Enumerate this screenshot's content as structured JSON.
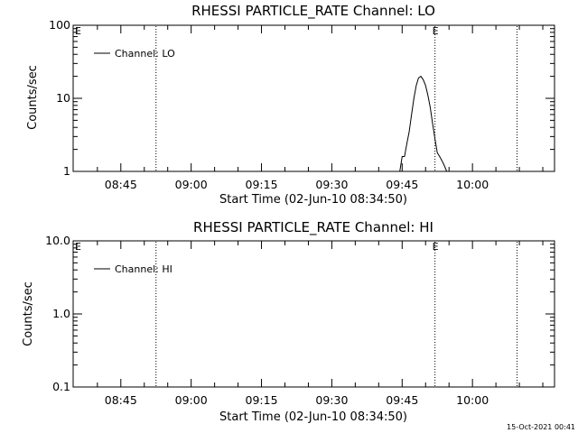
{
  "chart_data": [
    {
      "type": "line",
      "title": "RHESSI PARTICLE_RATE Channel: LO",
      "xlabel": "Start Time (02-Jun-10 08:34:50)",
      "ylabel": "Counts/sec",
      "yscale": "log",
      "ylim": [
        1,
        100
      ],
      "y_ticks": [
        1,
        10,
        100
      ],
      "y_tick_labels": [
        "1",
        "10",
        "100"
      ],
      "xlim_minutes_of_day": [
        514.83,
        617.5
      ],
      "x_tick_labels": [
        "08:45",
        "09:00",
        "09:15",
        "09:30",
        "09:45",
        "10:00"
      ],
      "x_tick_minutes_of_day": [
        525,
        540,
        555,
        570,
        585,
        600
      ],
      "vlines_dotted": [
        "08:52:30",
        "09:52:00",
        "10:09:30"
      ],
      "markers": [
        {
          "label": "E",
          "x": "08:34:50",
          "pos": "left-top"
        },
        {
          "label": "E",
          "x": "09:52:00",
          "pos": "top"
        }
      ],
      "legend": {
        "label": "Channel: LO",
        "placement": "top-left"
      },
      "grid": false,
      "series": [
        {
          "name": "Channel: LO",
          "x": [
            "09:44:30",
            "09:45:00",
            "09:45:30",
            "09:46:00",
            "09:46:30",
            "09:47:00",
            "09:47:30",
            "09:48:00",
            "09:48:30",
            "09:49:00",
            "09:49:30",
            "09:50:00",
            "09:50:30",
            "09:51:00",
            "09:51:30",
            "09:52:00",
            "09:52:30",
            "09:53:00",
            "09:53:30",
            "09:54:00",
            "09:54:30"
          ],
          "values": [
            1,
            1.6,
            1.6,
            2.4,
            3.5,
            6,
            10,
            15,
            19,
            20,
            18,
            15,
            11,
            7.5,
            4.5,
            2.8,
            1.8,
            1.6,
            1.4,
            1.2,
            1
          ]
        }
      ]
    },
    {
      "type": "line",
      "title": "RHESSI PARTICLE_RATE Channel: HI",
      "xlabel": "Start Time (02-Jun-10 08:34:50)",
      "ylabel": "Counts/sec",
      "yscale": "log",
      "ylim": [
        0.1,
        10
      ],
      "y_ticks": [
        0.1,
        1,
        10
      ],
      "y_tick_labels": [
        "0.1",
        "1.0",
        "10.0"
      ],
      "xlim_minutes_of_day": [
        514.83,
        617.5
      ],
      "x_tick_labels": [
        "08:45",
        "09:00",
        "09:15",
        "09:30",
        "09:45",
        "10:00"
      ],
      "x_tick_minutes_of_day": [
        525,
        540,
        555,
        570,
        585,
        600
      ],
      "vlines_dotted": [
        "08:52:30",
        "09:52:00",
        "10:09:30"
      ],
      "markers": [
        {
          "label": "E",
          "x": "08:34:50",
          "pos": "left-top"
        },
        {
          "label": "E",
          "x": "09:52:00",
          "pos": "top"
        }
      ],
      "legend": {
        "label": "Channel: HI",
        "placement": "top-left"
      },
      "grid": false,
      "series": [
        {
          "name": "Channel: HI",
          "x": [],
          "values": []
        }
      ]
    }
  ],
  "footer": {
    "timestamp": "15-Oct-2021 00:41"
  }
}
